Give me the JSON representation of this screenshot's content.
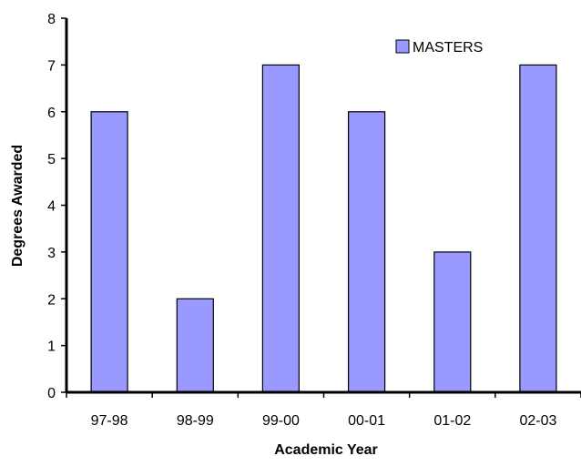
{
  "chart_data": {
    "type": "bar",
    "categories": [
      "97-98",
      "98-99",
      "99-00",
      "00-01",
      "01-02",
      "02-03"
    ],
    "series": [
      {
        "name": "MASTERS",
        "values": [
          6,
          2,
          7,
          6,
          3,
          7
        ]
      }
    ],
    "xlabel": "Academic Year",
    "ylabel": "Degrees Awarded",
    "ylim": [
      0,
      8
    ],
    "yticks": [
      "0",
      "1",
      "2",
      "3",
      "4",
      "5",
      "6",
      "7",
      "8"
    ],
    "grid": false,
    "legend_position": "top-right",
    "colors": {
      "bar_fill": "#9999ff",
      "bar_stroke": "#000000",
      "axis": "#000000"
    }
  }
}
